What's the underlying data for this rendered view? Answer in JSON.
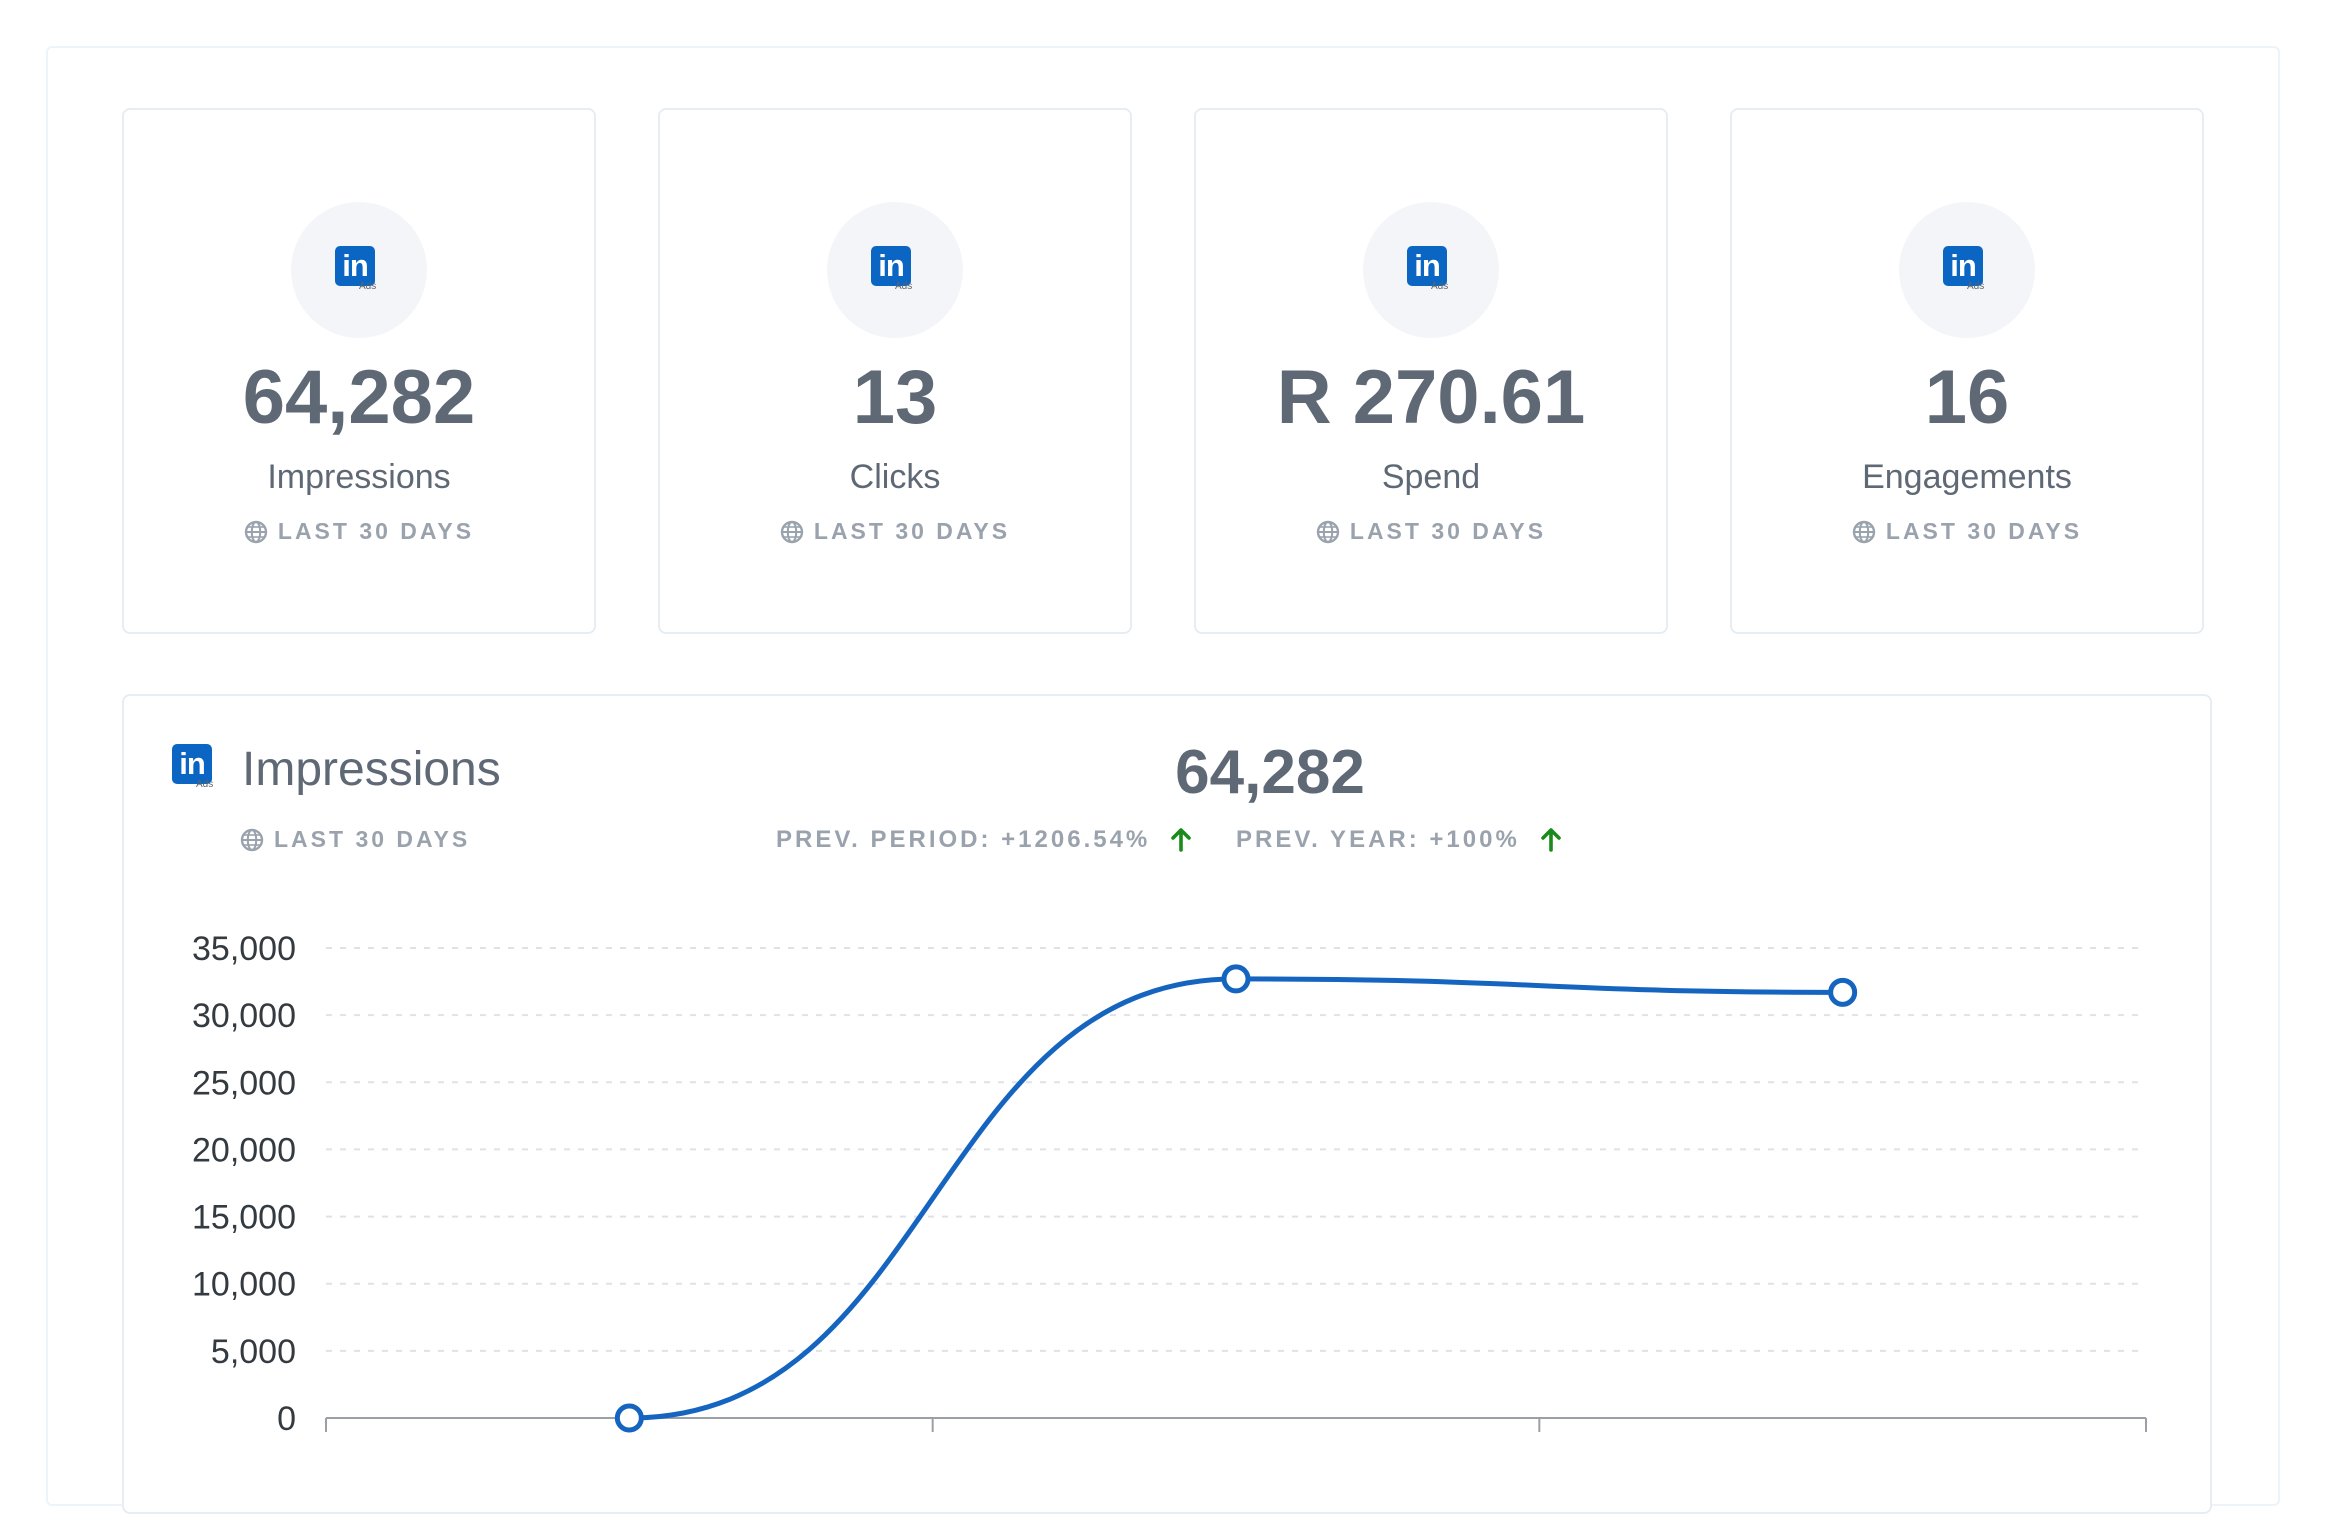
{
  "brand": {
    "logo_text": "in",
    "logo_sub": "Ads",
    "accent": "#0a66c2"
  },
  "kpis": [
    {
      "value": "64,282",
      "label": "Impressions",
      "period": "LAST 30 DAYS"
    },
    {
      "value": "13",
      "label": "Clicks",
      "period": "LAST 30 DAYS"
    },
    {
      "value": "R 270.61",
      "label": "Spend",
      "period": "LAST 30 DAYS"
    },
    {
      "value": "16",
      "label": "Engagements",
      "period": "LAST 30 DAYS"
    }
  ],
  "chart_card": {
    "title": "Impressions",
    "period": "LAST 30 DAYS",
    "total": "64,282",
    "prev_period": "PREV. PERIOD: +1206.54%",
    "prev_year": "PREV. YEAR: +100%",
    "trend_color": "#1a8a1a"
  },
  "chart_data": {
    "type": "line",
    "title": "",
    "xlabel": "",
    "ylabel": "",
    "ylim": [
      0,
      35000
    ],
    "y_ticks": [
      "35,000",
      "30,000",
      "25,000",
      "20,000",
      "15,000",
      "10,000",
      "5,000",
      "0"
    ],
    "y_tick_values": [
      35000,
      30000,
      25000,
      20000,
      15000,
      10000,
      5000,
      0
    ],
    "series": [
      {
        "values": [
          0,
          32700,
          31700
        ],
        "color": "#1565c0"
      }
    ],
    "grid": true,
    "legend": "none"
  }
}
